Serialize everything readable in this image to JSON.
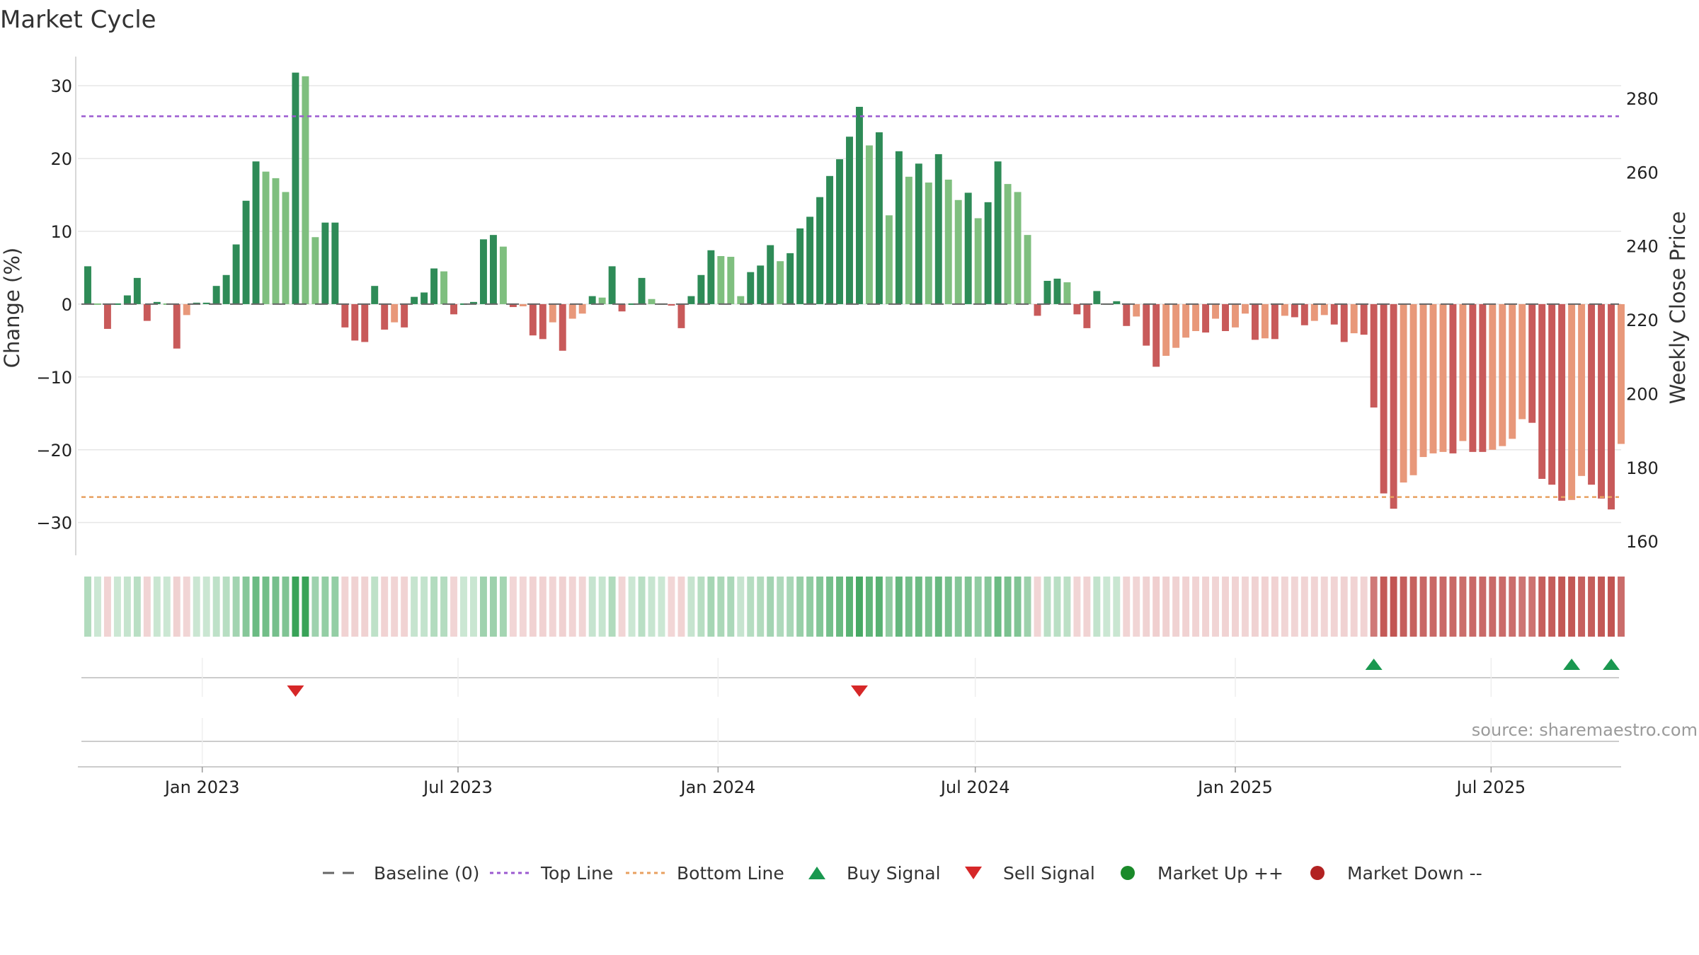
{
  "colors": {
    "up_dark": "#2e8b57",
    "up_light": "#7fbf7f",
    "down_dark": "#c85a5a",
    "down_light": "#e8987a",
    "top_line": "#9b59d0",
    "bottom_line": "#e8a060",
    "baseline": "#666666",
    "buy": "#1a9850",
    "sell": "#d62728",
    "market_up": "#1a8a2a",
    "market_down": "#b22222",
    "grid": "#e6e6e6"
  },
  "chart_data": {
    "type": "bar",
    "title": "Market Cycle",
    "ylabel": "Change (%)",
    "y2label": "Weekly Close Price",
    "ylim": [
      -34.5,
      34
    ],
    "y2lim": [
      156.2,
      291.3
    ],
    "yticks": [
      30,
      20,
      10,
      0,
      -10,
      -20,
      -30
    ],
    "yticks_labels": [
      "30",
      "20",
      "10",
      "0",
      "−10",
      "−20",
      "−30"
    ],
    "y2ticks": [
      280,
      260,
      240,
      220,
      200,
      180,
      160
    ],
    "y2ticks_labels": [
      "280",
      "260",
      "240",
      "220",
      "200",
      "180",
      "160"
    ],
    "x_start": "2022-10-05",
    "x_end": "2025-10-01",
    "xticks": [
      {
        "date": "2023-01-01",
        "label": "Jan 2023"
      },
      {
        "date": "2023-07-01",
        "label": "Jul 2023"
      },
      {
        "date": "2024-01-01",
        "label": "Jan 2024"
      },
      {
        "date": "2024-07-01",
        "label": "Jul 2024"
      },
      {
        "date": "2025-01-01",
        "label": "Jan 2025"
      },
      {
        "date": "2025-07-01",
        "label": "Jul 2025"
      }
    ],
    "top_line": 25.8,
    "bottom_line": -26.5,
    "grid": true,
    "legend_position": "bottom",
    "legend": [
      {
        "key": "baseline",
        "label": "Baseline (0)"
      },
      {
        "key": "top",
        "label": "Top Line"
      },
      {
        "key": "bottom",
        "label": "Bottom Line"
      },
      {
        "key": "buy",
        "label": "Buy Signal"
      },
      {
        "key": "sell",
        "label": "Sell Signal"
      },
      {
        "key": "mup",
        "label": "Market Up ++"
      },
      {
        "key": "mdown",
        "label": "Market Down --"
      }
    ],
    "source": "source: sharemaestro.com",
    "first_week": "2022-10-12",
    "values": [
      5.2,
      0,
      -3.4,
      0,
      1.2,
      3.6,
      -2.3,
      0.3,
      0,
      -6.1,
      -1.5,
      0.2,
      0.2,
      2.5,
      4,
      8.2,
      14.2,
      19.6,
      18.2,
      17.3,
      15.4,
      31.8,
      31.3,
      9.2,
      11.2,
      11.2,
      -3.2,
      -5,
      -5.2,
      2.5,
      -3.5,
      -2.5,
      -3.2,
      1,
      1.6,
      4.9,
      4.5,
      -1.4,
      0,
      0.3,
      8.9,
      9.5,
      7.9,
      -0.4,
      -0.3,
      -4.3,
      -4.8,
      -2.5,
      -6.4,
      -2,
      -1.3,
      1.1,
      0.9,
      5.2,
      -1,
      0,
      3.6,
      0.7,
      0,
      -0.2,
      -3.3,
      1.1,
      4,
      7.4,
      6.6,
      6.5,
      1.1,
      4.4,
      5.3,
      8.1,
      5.9,
      7,
      10.4,
      12,
      14.7,
      17.6,
      19.9,
      23,
      27.1,
      21.8,
      23.6,
      12.2,
      21,
      17.5,
      19.3,
      16.7,
      20.6,
      17.1,
      14.3,
      15.3,
      11.8,
      14,
      19.6,
      16.5,
      15.4,
      9.5,
      -1.6,
      3.2,
      3.5,
      3,
      -1.4,
      -3.3,
      1.8,
      0,
      0.4,
      -3,
      -1.7,
      -5.7,
      -8.6,
      -7.1,
      -6,
      -4.6,
      -3.7,
      -3.9,
      -2,
      -3.7,
      -3.2,
      -1.3,
      -4.9,
      -4.7,
      -4.8,
      -1.6,
      -1.8,
      -2.9,
      -2.3,
      -1.5,
      -2.8,
      -5.2,
      -4,
      -4.2,
      -14.2,
      -26,
      -28.1,
      -24.5,
      -23.5,
      -21,
      -20.5,
      -20.3,
      -20.5,
      -18.8,
      -20.3,
      -20.3,
      -20,
      -19.5,
      -18.5,
      -15.8,
      -16.3,
      -24,
      -24.8,
      -27,
      -26.9,
      -23.6,
      -24.8,
      -26.7,
      -28.2,
      -19.2
    ],
    "signals": [
      {
        "date": "2023-03-08",
        "type": "sell"
      },
      {
        "date": "2024-04-10",
        "type": "sell"
      },
      {
        "date": "2025-04-09",
        "type": "buy"
      },
      {
        "date": "2025-08-27",
        "type": "buy"
      },
      {
        "date": "2025-09-24",
        "type": "buy"
      }
    ]
  }
}
